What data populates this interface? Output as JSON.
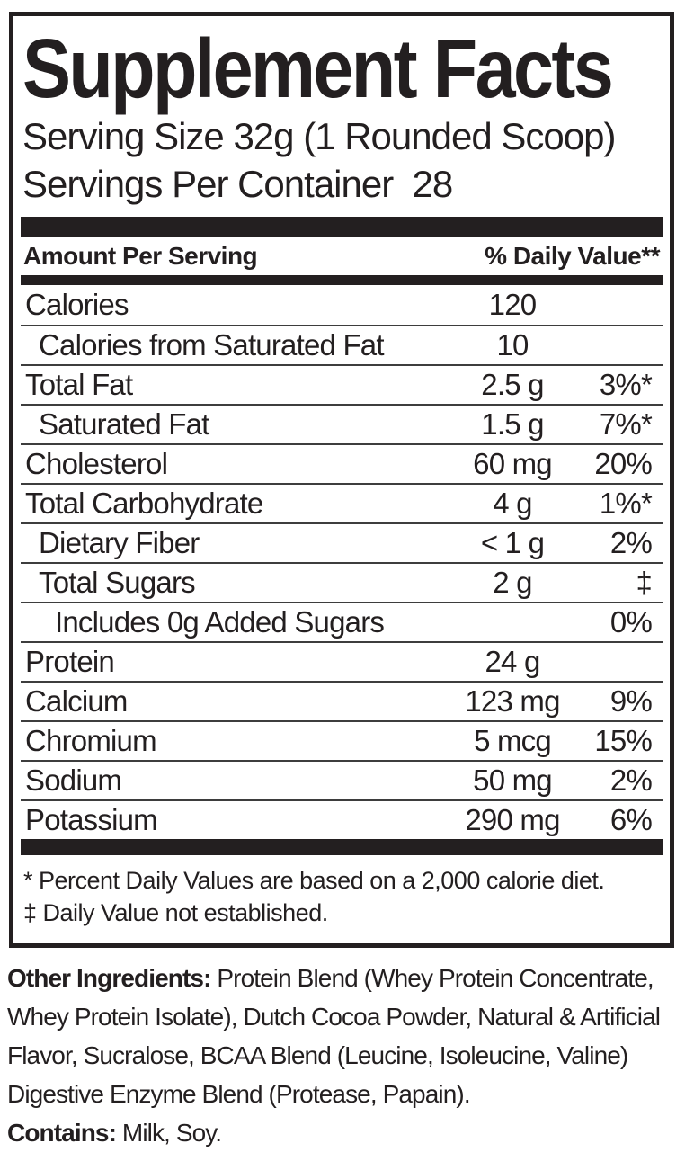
{
  "title": "Supplement Facts",
  "serving": {
    "size_line": "Serving Size 32g (1 Rounded Scoop)",
    "per_container_line": "Servings Per Container  28"
  },
  "header": {
    "left": "Amount Per Serving",
    "right": "% Daily Value**"
  },
  "rows": [
    {
      "name": "Calories",
      "amount": "120",
      "dv": "",
      "indent": 0
    },
    {
      "name": "Calories from Saturated Fat",
      "amount": "10",
      "dv": "",
      "indent": 1
    },
    {
      "name": "Total Fat",
      "amount": "2.5 g",
      "dv": "3%*",
      "indent": 0
    },
    {
      "name": "Saturated Fat",
      "amount": "1.5 g",
      "dv": "7%*",
      "indent": 1
    },
    {
      "name": "Cholesterol",
      "amount": "60 mg",
      "dv": "20%",
      "indent": 0
    },
    {
      "name": "Total Carbohydrate",
      "amount": "4 g",
      "dv": "1%*",
      "indent": 0
    },
    {
      "name": "Dietary Fiber",
      "amount": "< 1 g",
      "dv": "2%",
      "indent": 1
    },
    {
      "name": "Total Sugars",
      "amount": "2 g",
      "dv": "‡",
      "indent": 1
    },
    {
      "name": "Includes 0g Added Sugars",
      "amount": "",
      "dv": "0%",
      "indent": 2
    },
    {
      "name": "Protein",
      "amount": "24 g",
      "dv": "",
      "indent": 0
    },
    {
      "name": "Calcium",
      "amount": "123 mg",
      "dv": "9%",
      "indent": 0
    },
    {
      "name": "Chromium",
      "amount": "5 mcg",
      "dv": "15%",
      "indent": 0
    },
    {
      "name": "Sodium",
      "amount": "50 mg",
      "dv": "2%",
      "indent": 0
    },
    {
      "name": "Potassium",
      "amount": "290 mg",
      "dv": "6%",
      "indent": 0
    }
  ],
  "footnotes": [
    "* Percent Daily Values are based on a 2,000 calorie diet.",
    "‡ Daily Value not established."
  ],
  "other_ingredients": {
    "label": "Other Ingredients:",
    "text": " Protein Blend (Whey Protein Concentrate, Whey Protein Isolate), Dutch Cocoa Powder, Natural & Artificial Flavor, Sucralose, BCAA Blend (Leucine, Isoleucine, Valine) Digestive Enzyme Blend (Protease, Papain)."
  },
  "contains": {
    "label": "Contains:",
    "text": " Milk, Soy."
  },
  "colors": {
    "text": "#231f20",
    "background": "#ffffff",
    "divider": "#3d3d3d"
  }
}
